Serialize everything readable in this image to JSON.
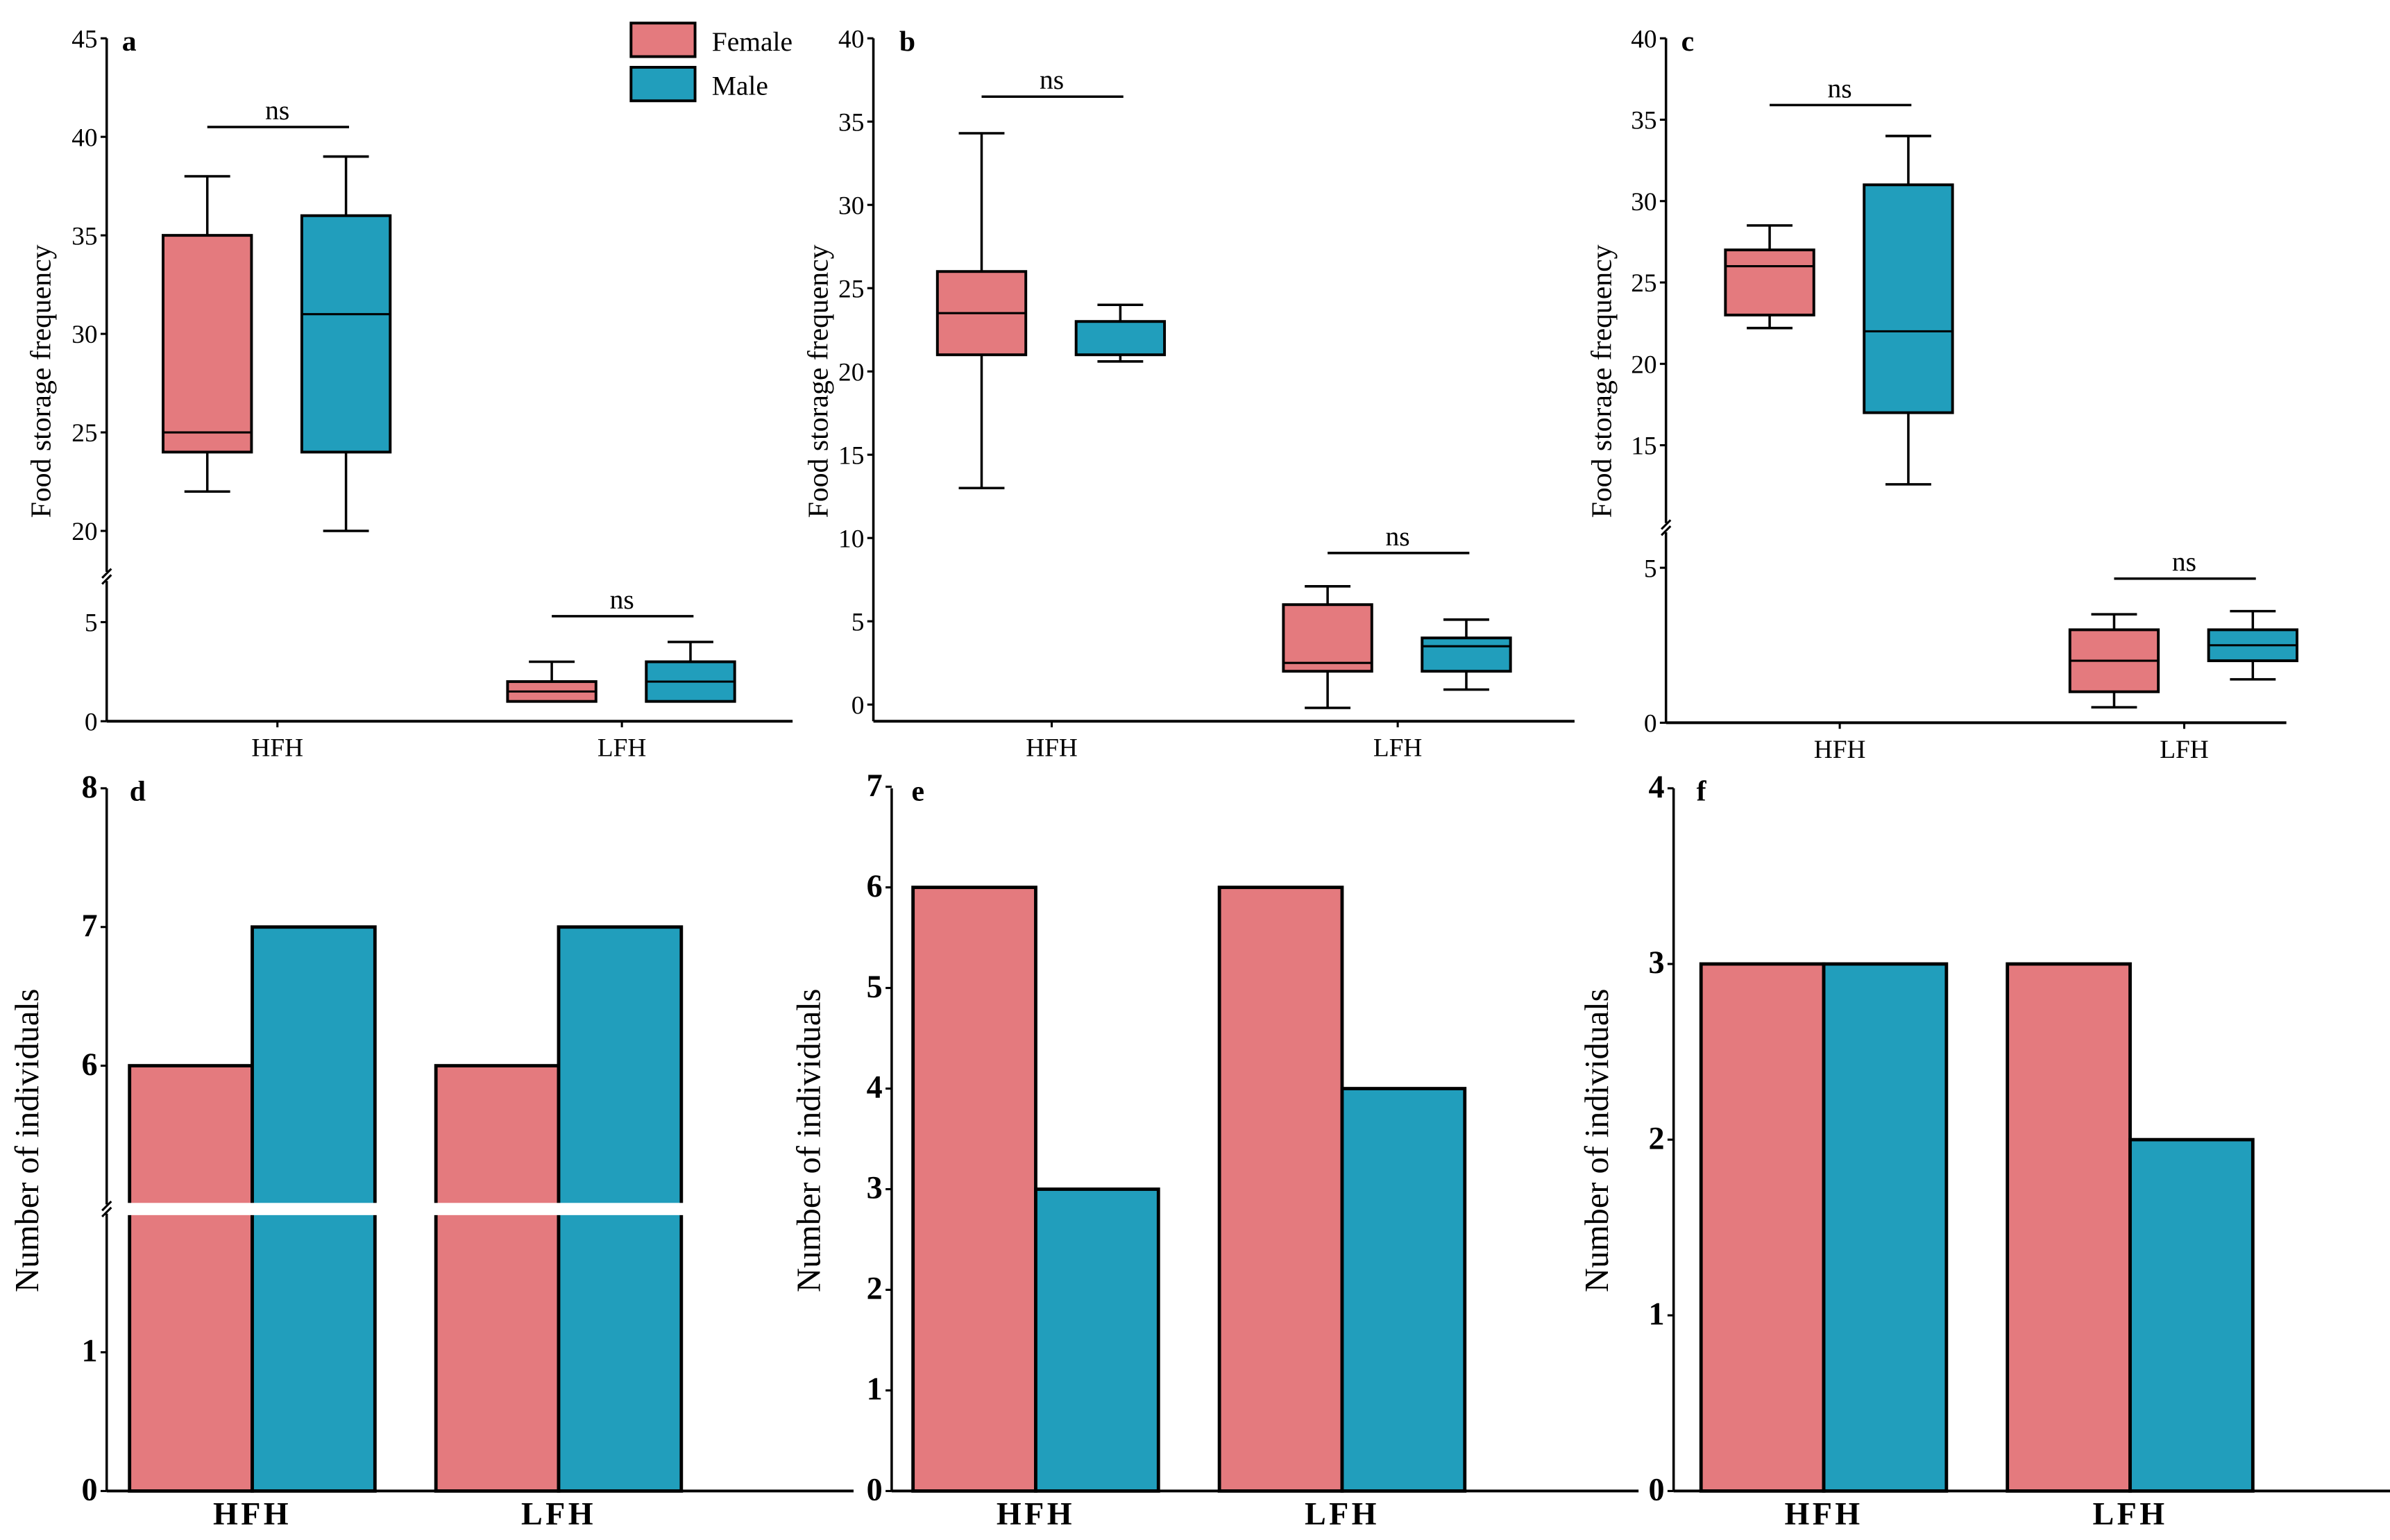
{
  "colors": {
    "female": "#e47a7e",
    "male": "#219ebc",
    "axis": "#000000"
  },
  "legend": [
    {
      "label": "Female",
      "color": "#e47a7e"
    },
    {
      "label": "Male",
      "color": "#219ebc"
    }
  ],
  "chart_data": [
    {
      "id": "a",
      "type": "box",
      "panel_label": "a",
      "ylabel": "Food storage frequency",
      "categories": [
        "HFH",
        "LFH"
      ],
      "y_break": [
        7,
        18
      ],
      "yticks": [
        "0",
        "5",
        "20",
        "25",
        "30",
        "35",
        "40",
        "45"
      ],
      "ytick_values": [
        0,
        5,
        20,
        25,
        30,
        35,
        40,
        45
      ],
      "series": [
        {
          "name": "Female",
          "boxes": [
            {
              "min": 22,
              "q1": 24,
              "median": 25,
              "q3": 35,
              "max": 38
            },
            {
              "min": 1,
              "q1": 1,
              "median": 1.5,
              "q3": 2,
              "max": 3
            }
          ]
        },
        {
          "name": "Male",
          "boxes": [
            {
              "min": 20,
              "q1": 24,
              "median": 31,
              "q3": 36,
              "max": 39
            },
            {
              "min": 1,
              "q1": 1,
              "median": 2,
              "q3": 3,
              "max": 4
            }
          ]
        }
      ],
      "significance": [
        {
          "label": "ns",
          "y": 40.5
        },
        {
          "label": "ns",
          "y": 5.3
        }
      ]
    },
    {
      "id": "b",
      "type": "box",
      "panel_label": "b",
      "ylabel": "Food storage frequency",
      "categories": [
        "HFH",
        "LFH"
      ],
      "yticks": [
        "0",
        "5",
        "10",
        "15",
        "20",
        "25",
        "30",
        "35",
        "40"
      ],
      "ytick_values": [
        0,
        5,
        10,
        15,
        20,
        25,
        30,
        35,
        40
      ],
      "series": [
        {
          "name": "Female",
          "boxes": [
            {
              "min": 13,
              "q1": 21,
              "median": 23.5,
              "q3": 26,
              "max": 34.3
            },
            {
              "min": -0.2,
              "q1": 2,
              "median": 2.5,
              "q3": 6,
              "max": 7.1
            }
          ]
        },
        {
          "name": "Male",
          "boxes": [
            {
              "min": 20.6,
              "q1": 21,
              "median": 23,
              "q3": 23,
              "max": 24
            },
            {
              "min": 0.9,
              "q1": 2,
              "median": 3.5,
              "q3": 4,
              "max": 5.1
            }
          ]
        }
      ],
      "significance": [
        {
          "label": "ns",
          "y": 36.5
        },
        {
          "label": "ns",
          "y": 9.1
        }
      ]
    },
    {
      "id": "c",
      "type": "box",
      "panel_label": "c",
      "ylabel": "Food storage frequency",
      "categories": [
        "HFH",
        "LFH"
      ],
      "y_break": [
        6,
        10.5
      ],
      "yticks": [
        "0",
        "5",
        "15",
        "20",
        "25",
        "30",
        "35",
        "40"
      ],
      "ytick_values": [
        0,
        5,
        15,
        20,
        25,
        30,
        35,
        40
      ],
      "series": [
        {
          "name": "Female",
          "boxes": [
            {
              "min": 22.2,
              "q1": 23,
              "median": 26,
              "q3": 27,
              "max": 28.5
            },
            {
              "min": 0.5,
              "q1": 1,
              "median": 2,
              "q3": 3,
              "max": 3.5
            }
          ]
        },
        {
          "name": "Male",
          "boxes": [
            {
              "min": 12.6,
              "q1": 17,
              "median": 22,
              "q3": 31,
              "max": 34
            },
            {
              "min": 1.4,
              "q1": 2,
              "median": 2.5,
              "q3": 3,
              "max": 3.6
            }
          ]
        }
      ],
      "significance": [
        {
          "label": "ns",
          "y": 35.9
        },
        {
          "label": "ns",
          "y": 4.65
        }
      ]
    },
    {
      "id": "d",
      "type": "bar",
      "panel_label": "d",
      "ylabel": "Number of individuals",
      "categories": [
        "HFH",
        "LFH"
      ],
      "y_break": [
        2,
        5
      ],
      "yticks": [
        "0",
        "1",
        "6",
        "7",
        "8"
      ],
      "ytick_values": [
        0,
        1,
        6,
        7,
        8
      ],
      "series": [
        {
          "name": "Female",
          "values": [
            6,
            6
          ]
        },
        {
          "name": "Male",
          "values": [
            7,
            7
          ]
        }
      ]
    },
    {
      "id": "e",
      "type": "bar",
      "panel_label": "e",
      "ylabel": "Number of individuals",
      "categories": [
        "HFH",
        "LFH"
      ],
      "yticks": [
        "0",
        "1",
        "2",
        "3",
        "4",
        "5",
        "6",
        "7"
      ],
      "ytick_values": [
        0,
        1,
        2,
        3,
        4,
        5,
        6,
        7
      ],
      "series": [
        {
          "name": "Female",
          "values": [
            6,
            6
          ]
        },
        {
          "name": "Male",
          "values": [
            3,
            4
          ]
        }
      ]
    },
    {
      "id": "f",
      "type": "bar",
      "panel_label": "f",
      "ylabel": "Number of individuals",
      "categories": [
        "HFH",
        "LFH"
      ],
      "yticks": [
        "0",
        "1",
        "2",
        "3",
        "4"
      ],
      "ytick_values": [
        0,
        1,
        2,
        3,
        4
      ],
      "series": [
        {
          "name": "Female",
          "values": [
            3,
            3
          ]
        },
        {
          "name": "Male",
          "values": [
            3,
            2
          ]
        }
      ]
    }
  ]
}
